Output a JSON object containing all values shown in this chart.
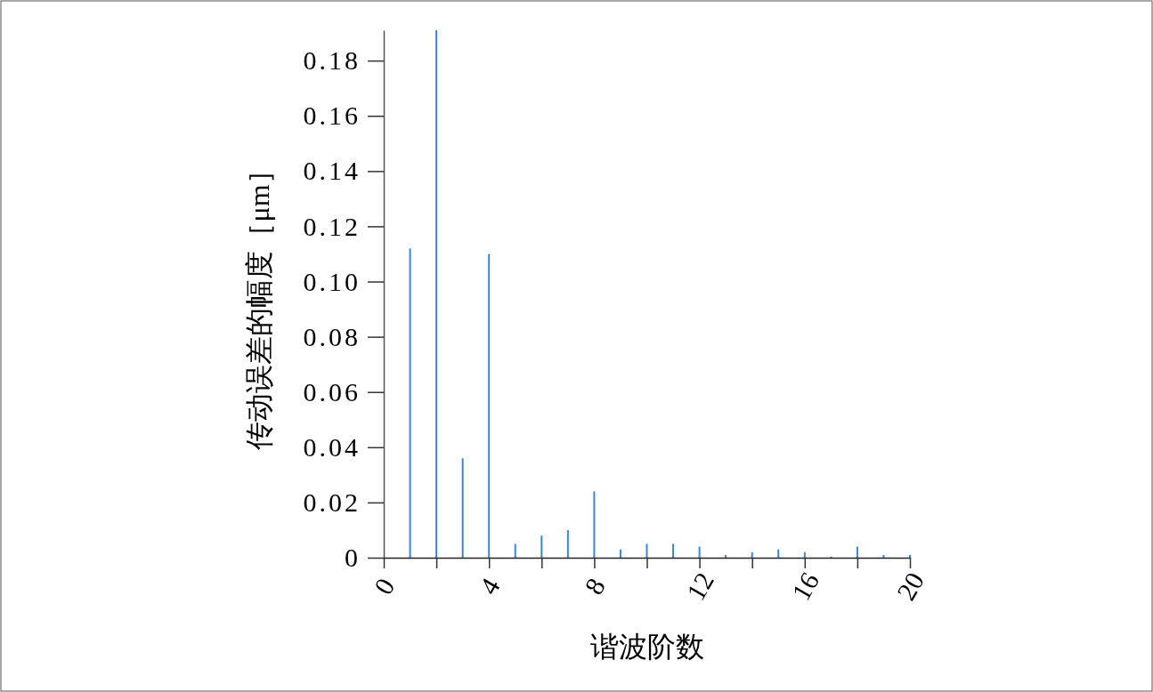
{
  "chart_data": {
    "type": "bar",
    "xlabel": "谐波阶数",
    "ylabel": "传动误差的幅度［μm］",
    "x": [
      1,
      2,
      3,
      4,
      5,
      6,
      7,
      8,
      9,
      10,
      11,
      12,
      13,
      14,
      15,
      16,
      17,
      18,
      19,
      20
    ],
    "values": [
      0.112,
      0.191,
      0.036,
      0.11,
      0.005,
      0.008,
      0.01,
      0.024,
      0.003,
      0.005,
      0.005,
      0.004,
      0.001,
      0.002,
      0.003,
      0.002,
      0.0004,
      0.004,
      0.001,
      0.001
    ],
    "color": "#3d85d8",
    "xlim": [
      0,
      20
    ],
    "xticks": [
      0,
      {
        "value": 2,
        "label": null
      },
      4,
      {
        "value": 6,
        "label": null
      },
      8,
      {
        "value": 10,
        "label": null
      },
      12,
      {
        "value": 14,
        "label": null
      },
      16,
      {
        "value": 18,
        "label": null
      },
      20
    ],
    "ylim": [
      0,
      0.191
    ],
    "yticks": [
      0,
      0.02,
      0.04,
      0.06,
      0.08,
      {
        "value": 0.1,
        "label": "0.10"
      },
      0.12,
      0.14,
      0.16,
      0.18
    ],
    "grid": false
  }
}
